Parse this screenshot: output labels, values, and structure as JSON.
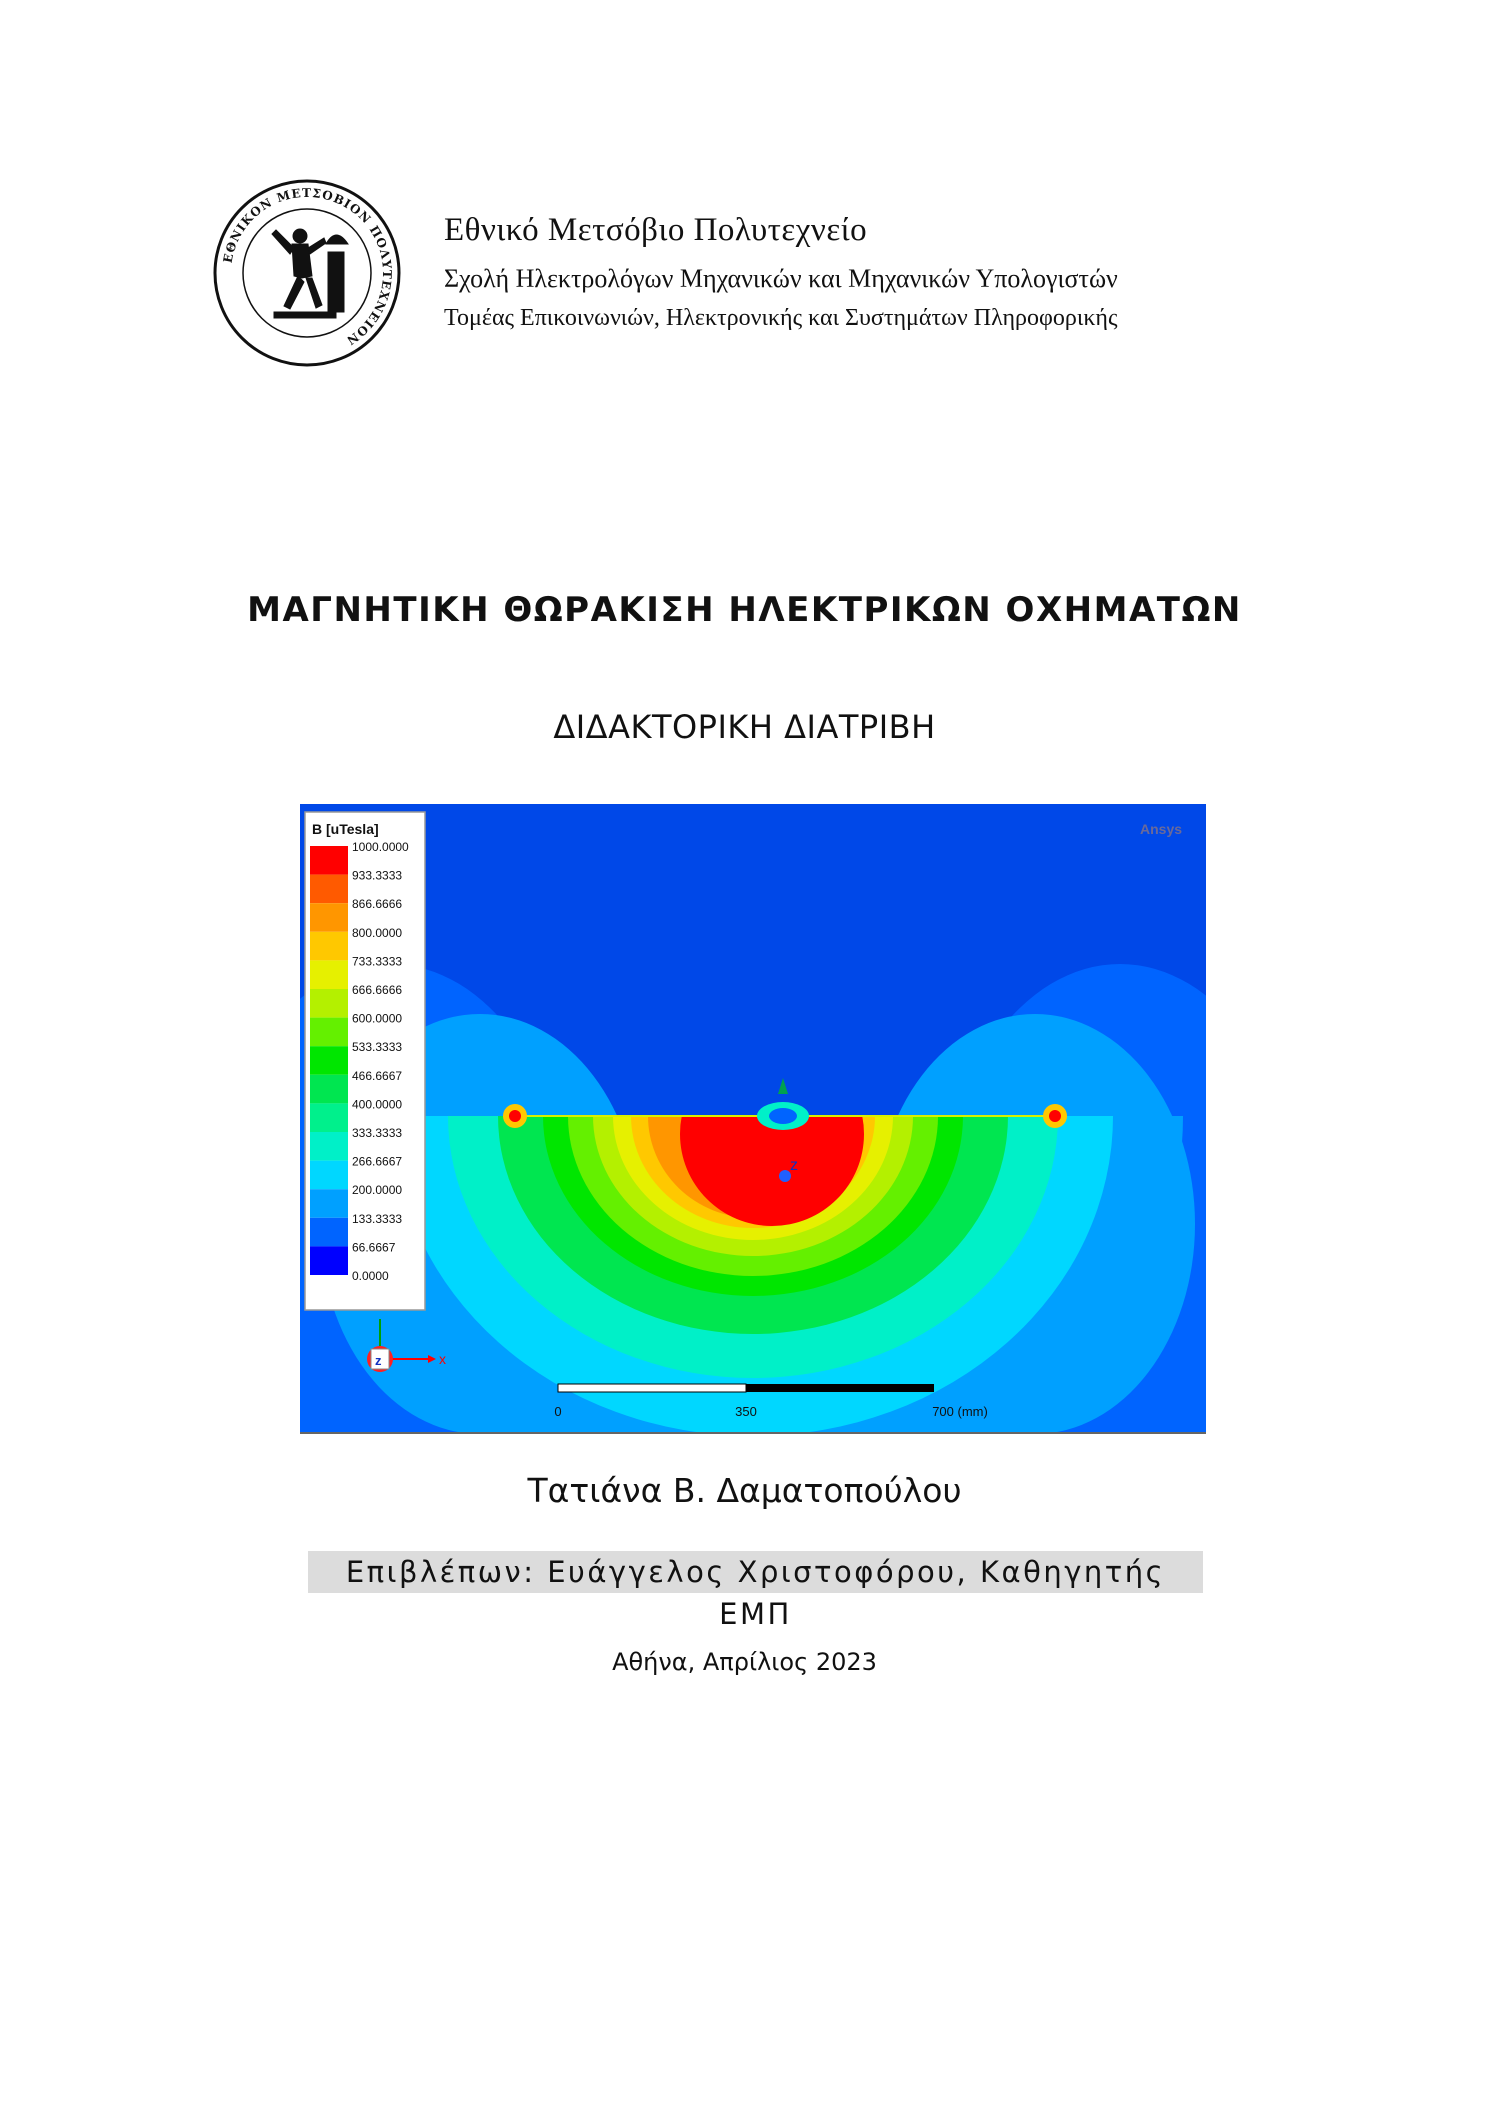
{
  "institution": {
    "name": "Εθνικό Μετσόβιο Πολυτεχνείο",
    "school": "Σχολή Ηλεκτρολόγων Μηχανικών και Μηχανικών Υπολογιστών",
    "department": "Τομέας Επικοινωνιών, Ηλεκτρονικής και Συστημάτων Πληροφορικής",
    "seal_text": "ΕΘΝΙΚΟΝ ΜΕΤΣΟΒΙΟΝ ΠΟΛΥΤΕΧΝΕΙΟΝ"
  },
  "document": {
    "title": "ΜΑΓΝΗΤΙΚΗ ΘΩΡΑΚΙΣΗ ΗΛΕΚΤΡΙΚΩΝ ΟΧΗΜΑΤΩΝ",
    "type": "ΔΙΔΑΚΤΟΡΙΚΗ ΔΙΑΤΡΙΒΗ",
    "author": "Τατιάνα Β. Δαματοπούλου",
    "supervisor": "Επιβλέπων: Ευάγγελος Χριστοφόρου, Καθηγητής ΕΜΠ",
    "place_date": "Αθήνα, Απρίλιος 2023"
  },
  "simulation": {
    "legend_title": "B [uTesla]",
    "legend_values": [
      "1000.0000",
      "933.3333",
      "866.6666",
      "800.0000",
      "733.3333",
      "666.6666",
      "600.0000",
      "533.3333",
      "466.6667",
      "400.0000",
      "333.3333",
      "266.6667",
      "200.0000",
      "133.3333",
      "66.6667",
      "0.0000"
    ],
    "legend_colors": [
      "#ff0000",
      "#ff5a00",
      "#ff9600",
      "#ffc800",
      "#e6f000",
      "#b4f000",
      "#64f000",
      "#00e600",
      "#00e650",
      "#00f08c",
      "#00f0c8",
      "#00d7ff",
      "#00a0ff",
      "#0064ff",
      "#0000ff"
    ],
    "brand": "Ansys",
    "axis_x": "x",
    "axis_z": "z",
    "scale_ticks": [
      "0",
      "350",
      "700 (mm)"
    ]
  }
}
